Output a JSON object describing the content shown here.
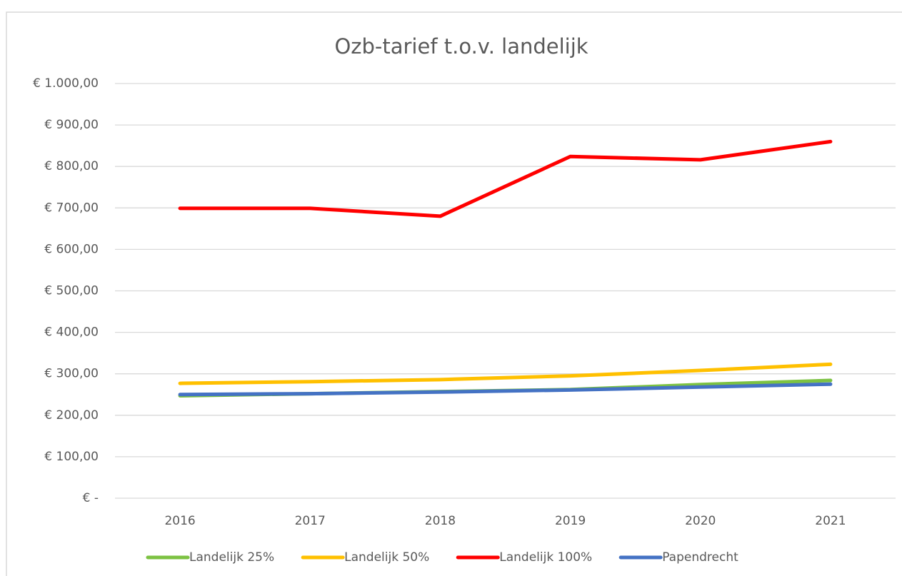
{
  "chart_data": {
    "type": "line",
    "title": "Ozb-tarief t.o.v. landelijk",
    "categories": [
      "2016",
      "2017",
      "2018",
      "2019",
      "2020",
      "2021"
    ],
    "series": [
      {
        "name": "Landelijk 25%",
        "color": "#7cc242",
        "values": [
          247,
          252,
          257,
          262,
          274,
          284
        ]
      },
      {
        "name": "Landelijk 50%",
        "color": "#ffc000",
        "values": [
          277,
          281,
          286,
          295,
          308,
          323
        ]
      },
      {
        "name": "Landelijk 100%",
        "color": "#ff0000",
        "values": [
          699,
          699,
          680,
          824,
          816,
          860
        ]
      },
      {
        "name": "Papendrecht",
        "color": "#4472c4",
        "values": [
          250,
          252,
          256,
          261,
          268,
          275
        ]
      }
    ],
    "ylim": [
      0,
      1000
    ],
    "yticks": [
      {
        "value": 0,
        "label": "€ -"
      },
      {
        "value": 100,
        "label": "€ 100,00"
      },
      {
        "value": 200,
        "label": "€ 200,00"
      },
      {
        "value": 300,
        "label": "€ 300,00"
      },
      {
        "value": 400,
        "label": "€ 400,00"
      },
      {
        "value": 500,
        "label": "€ 500,00"
      },
      {
        "value": 600,
        "label": "€ 600,00"
      },
      {
        "value": 700,
        "label": "€ 700,00"
      },
      {
        "value": 800,
        "label": "€ 800,00"
      },
      {
        "value": 900,
        "label": "€ 900,00"
      },
      {
        "value": 1000,
        "label": "€ 1.000,00"
      }
    ],
    "grid": true,
    "legend": "bottom"
  }
}
